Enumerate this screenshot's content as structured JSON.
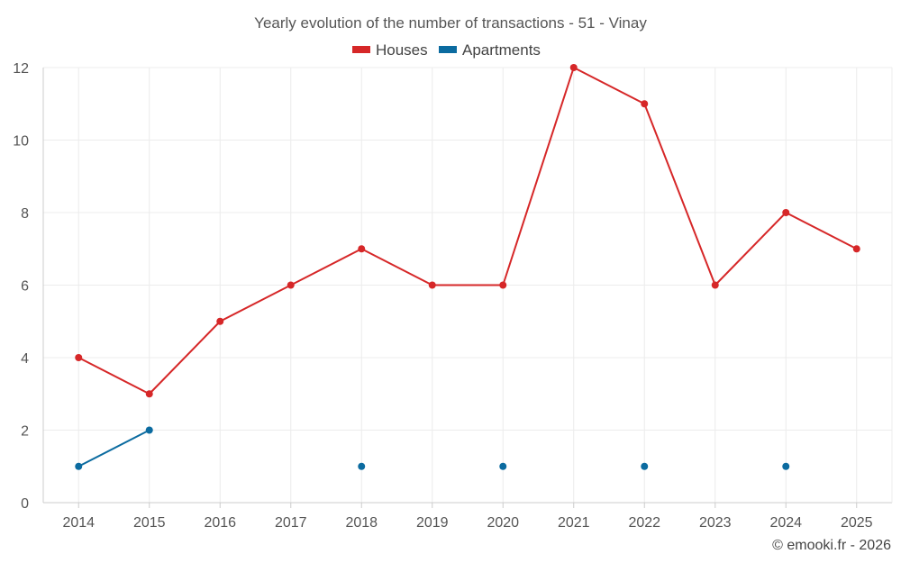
{
  "chart_data": {
    "type": "line",
    "title": "Yearly evolution of the number of transactions - 51 - Vinay",
    "xlabel": "",
    "ylabel": "",
    "categories": [
      "2014",
      "2015",
      "2016",
      "2017",
      "2018",
      "2019",
      "2020",
      "2021",
      "2022",
      "2023",
      "2024",
      "2025"
    ],
    "ylim": [
      0,
      12
    ],
    "yticks": [
      0,
      2,
      4,
      6,
      8,
      10,
      12
    ],
    "grid": true,
    "legend_position": "top-center",
    "series": [
      {
        "name": "Houses",
        "color": "#d62728",
        "values": [
          4,
          3,
          5,
          6,
          7,
          6,
          6,
          12,
          11,
          6,
          8,
          7
        ]
      },
      {
        "name": "Apartments",
        "color": "#0b6ba0",
        "values": [
          1,
          2,
          null,
          null,
          1,
          null,
          1,
          null,
          1,
          null,
          1,
          null
        ]
      }
    ]
  },
  "credit": "© emooki.fr - 2026"
}
